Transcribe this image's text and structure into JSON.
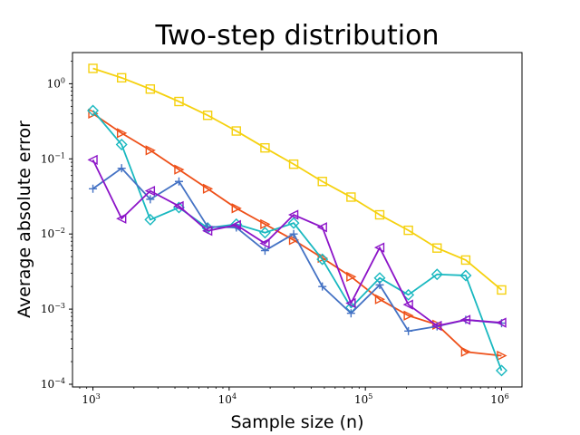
{
  "chart_data": {
    "type": "line",
    "title": "Two-step distribution",
    "xlabel": "Sample size (n)",
    "ylabel": "Average absolute error",
    "xscale": "log",
    "yscale": "log",
    "xlim": [
      708,
      1412000
    ],
    "ylim": [
      9.2e-05,
      2.6
    ],
    "x_ticks": [
      {
        "value": 1000,
        "base": "10",
        "exp": "3"
      },
      {
        "value": 10000,
        "base": "10",
        "exp": "4"
      },
      {
        "value": 100000,
        "base": "10",
        "exp": "5"
      },
      {
        "value": 1000000,
        "base": "10",
        "exp": "6"
      }
    ],
    "y_ticks": [
      {
        "value": 0.0001,
        "base": "10",
        "exp": "−4"
      },
      {
        "value": 0.001,
        "base": "10",
        "exp": "−3"
      },
      {
        "value": 0.01,
        "base": "10",
        "exp": "−2"
      },
      {
        "value": 0.1,
        "base": "10",
        "exp": "−1"
      },
      {
        "value": 1,
        "base": "10",
        "exp": "0"
      }
    ],
    "x": [
      1000,
      1624,
      2637,
      4281,
      6952,
      11288,
      18330,
      29764,
      48329,
      78476,
      127427,
      206914,
      335982,
      545559,
      1000000
    ],
    "series": [
      {
        "name": "yellow-square",
        "color": "#f5d10f",
        "marker": "square",
        "values": [
          1.6,
          1.2,
          0.85,
          0.58,
          0.38,
          0.235,
          0.14,
          0.085,
          0.05,
          0.031,
          0.018,
          0.0112,
          0.0065,
          0.0045,
          0.0018
        ]
      },
      {
        "name": "orange-triangle-right",
        "color": "#ee5019",
        "marker": "triangle-right",
        "values": [
          0.4,
          0.22,
          0.13,
          0.072,
          0.04,
          0.022,
          0.0135,
          0.0083,
          0.0048,
          0.0027,
          0.00135,
          0.00082,
          0.00062,
          0.00027,
          0.00024
        ]
      },
      {
        "name": "cyan-diamond",
        "color": "#19b8c0",
        "marker": "diamond",
        "values": [
          0.44,
          0.155,
          0.0155,
          0.0225,
          0.012,
          0.0135,
          0.0104,
          0.014,
          0.0046,
          0.00105,
          0.0026,
          0.00155,
          0.0029,
          0.0028,
          0.000152
        ]
      },
      {
        "name": "blue-plus",
        "color": "#4472c4",
        "marker": "plus",
        "values": [
          0.04,
          0.075,
          0.029,
          0.05,
          0.0125,
          0.0122,
          0.006,
          0.01,
          0.002,
          0.00088,
          0.0021,
          0.00051,
          0.00059,
          0.00072,
          0.00065
        ]
      },
      {
        "name": "purple-triangle-left",
        "color": "#8c14c8",
        "marker": "triangle-left",
        "values": [
          0.097,
          0.016,
          0.0375,
          0.0235,
          0.011,
          0.0132,
          0.0075,
          0.018,
          0.0123,
          0.0012,
          0.0066,
          0.00115,
          0.0006,
          0.00072,
          0.00066
        ]
      }
    ]
  }
}
